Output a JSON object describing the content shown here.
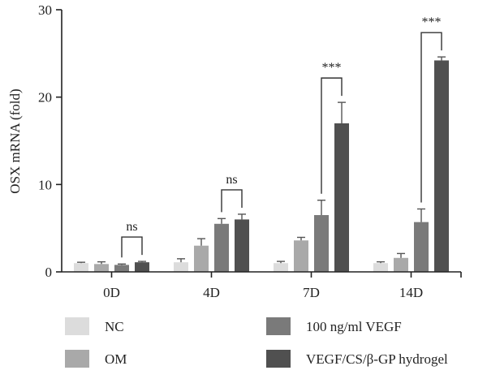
{
  "chart_data": {
    "type": "bar",
    "ylabel": "OSX mRNA (fold)",
    "xlabel": "",
    "ylim": [
      0,
      30
    ],
    "yticks": [
      0,
      10,
      20,
      30
    ],
    "categories": [
      "0D",
      "4D",
      "7D",
      "14D"
    ],
    "series": [
      {
        "name": "NC",
        "color": "#dcdcdc",
        "values": [
          1.0,
          1.1,
          1.0,
          1.0
        ],
        "errors": [
          0.1,
          0.4,
          0.2,
          0.15
        ]
      },
      {
        "name": "OM",
        "color": "#a9a9a9",
        "values": [
          0.9,
          3.0,
          3.6,
          1.6
        ],
        "errors": [
          0.25,
          0.8,
          0.35,
          0.5
        ]
      },
      {
        "name": "100 ng/ml VEGF",
        "color": "#7a7a7a",
        "values": [
          0.8,
          5.5,
          6.5,
          5.7
        ],
        "errors": [
          0.1,
          0.6,
          1.7,
          1.5
        ]
      },
      {
        "name": "VEGF/CS/β-GP hydrogel",
        "color": "#505050",
        "values": [
          1.1,
          6.0,
          17.0,
          24.2
        ],
        "errors": [
          0.1,
          0.6,
          2.4,
          0.4
        ]
      }
    ],
    "annotations": [
      {
        "category": "0D",
        "label": "ns",
        "from": 2,
        "to": 3
      },
      {
        "category": "4D",
        "label": "ns",
        "from": 2,
        "to": 3
      },
      {
        "category": "7D",
        "label": "***",
        "from": 2,
        "to": 3
      },
      {
        "category": "14D",
        "label": "***",
        "from": 2,
        "to": 3
      }
    ],
    "legend_position": "bottom"
  }
}
